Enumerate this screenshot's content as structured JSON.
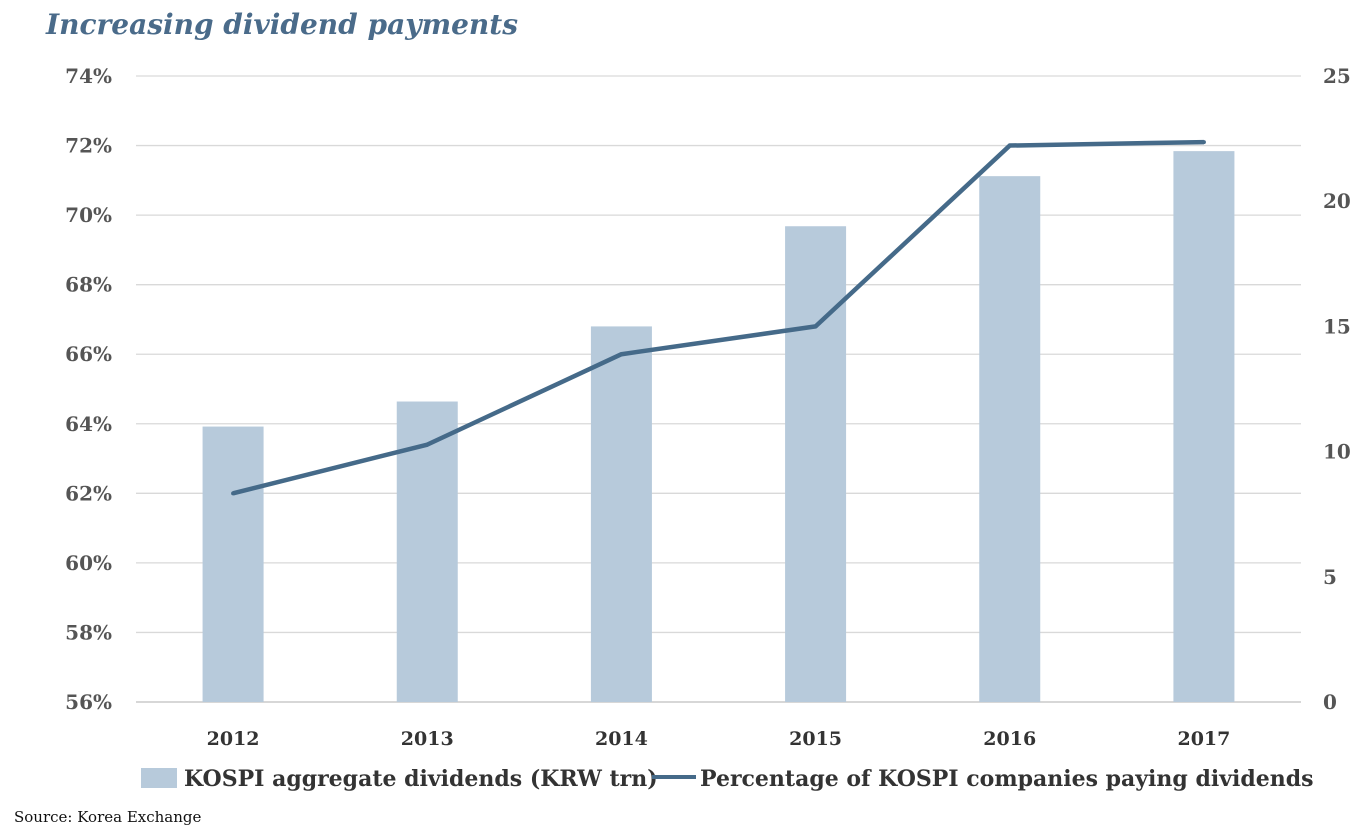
{
  "chart_data": {
    "type": "bar",
    "title": "Increasing dividend payments",
    "categories": [
      "2012",
      "2013",
      "2014",
      "2015",
      "2016",
      "2017"
    ],
    "series": [
      {
        "name": "KOSPI aggregate dividends (KRW trn)",
        "type": "bar",
        "axis": "right",
        "color": "#b7cadb",
        "values": [
          11.0,
          12.0,
          15.0,
          19.0,
          21.0,
          22.0
        ]
      },
      {
        "name": "Percentage of KOSPI companies paying dividends",
        "type": "line",
        "axis": "left",
        "color": "#456a89",
        "values": [
          62.0,
          63.4,
          66.0,
          66.8,
          72.0,
          72.1
        ]
      }
    ],
    "left_axis": {
      "min": 56,
      "max": 74,
      "step": 2,
      "tick_labels": [
        "56%",
        "58%",
        "60%",
        "62%",
        "64%",
        "66%",
        "68%",
        "70%",
        "72%",
        "74%"
      ]
    },
    "right_axis": {
      "min": 0,
      "max": 25,
      "step": 5,
      "tick_labels": [
        "0",
        "5",
        "10",
        "15",
        "20",
        "25"
      ]
    },
    "grid": true,
    "legend_position": "bottom"
  },
  "source": "Source: Korea Exchange"
}
